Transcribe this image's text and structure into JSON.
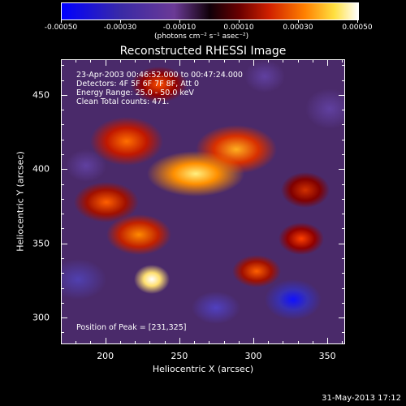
{
  "chart_data": {
    "type": "heatmap",
    "title": "Reconstructed RHESSI Image",
    "xlabel": "Heliocentric X (arcsec)",
    "ylabel": "Heliocentric Y (arcsec)",
    "xlim": [
      170,
      362
    ],
    "ylim": [
      282,
      474
    ],
    "xticks": [
      "200",
      "250",
      "300",
      "350"
    ],
    "yticks": [
      "300",
      "350",
      "400",
      "450"
    ],
    "colorbar": {
      "ticks": [
        "-0.00050",
        "-0.00030",
        "-0.00010",
        "0.00010",
        "0.00030",
        "0.00050"
      ],
      "range": [
        -0.0005,
        0.0005
      ],
      "units": "(photons cm⁻² s⁻¹ asec⁻²)"
    },
    "annotations": {
      "time": "23-Apr-2003 00:46:52.000 to 00:47:24.000",
      "detectors": "Detectors: 4F 5F 6F 7F 8F, Att 0",
      "energy": "Energy Range: 25.0 - 50.0 keV",
      "clean": "Clean     Total counts: 471.",
      "peak": "Position of Peak = [231,325]"
    },
    "peak_position": [
      231,
      325
    ],
    "grid": false
  },
  "footer": {
    "datestamp": "31-May-2013 17:12"
  },
  "colors": {
    "background": "#000000",
    "foreground": "#ffffff"
  }
}
